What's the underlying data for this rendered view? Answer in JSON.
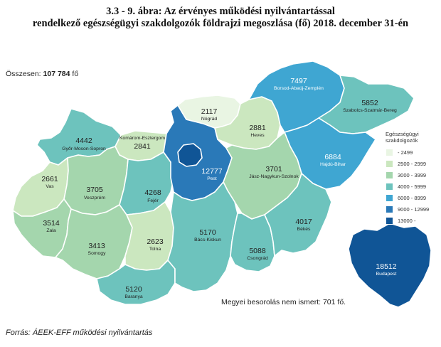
{
  "title_line1": "3.3 - 9. ábra: Az érvényes működési nyilvántartással",
  "title_line2": "rendelkező egészségügyi szakdolgozók földrajzi megoszlása (fő) 2018. december 31-én",
  "total_label": "Összesen:",
  "total_value": "107 784",
  "total_unit": "fő",
  "unknown_note": "Megyei besorolás nem ismert: 701 fő.",
  "source": "Forrás: ÁEEK-EFF működési nyilvántartás",
  "legend": {
    "title": "Egészségügyi szakdolgozók",
    "classes": [
      {
        "label": "- 2499",
        "color": "#e9f5e3"
      },
      {
        "label": "2500 - 2999",
        "color": "#cbe7bf"
      },
      {
        "label": "3000 - 3999",
        "color": "#a4d6ad"
      },
      {
        "label": "4000 - 5999",
        "color": "#6dc3bd"
      },
      {
        "label": "6000 - 8999",
        "color": "#3fa6d2"
      },
      {
        "label": "9000 - 12999",
        "color": "#2a79b8"
      },
      {
        "label": "13000 -",
        "color": "#105596"
      }
    ]
  },
  "counties": [
    {
      "id": "gyor-moson-sopron",
      "name": "Győr-Moson-Sopron",
      "value": "4442",
      "color": "#6dc3bd"
    },
    {
      "id": "komarom-esztergom",
      "name": "Komárom-Esztergom",
      "value": "2841",
      "color": "#cbe7bf"
    },
    {
      "id": "vas",
      "name": "Vas",
      "value": "2661",
      "color": "#cbe7bf"
    },
    {
      "id": "veszprem",
      "name": "Veszprém",
      "value": "3705",
      "color": "#a4d6ad"
    },
    {
      "id": "fejer",
      "name": "Fejér",
      "value": "4268",
      "color": "#6dc3bd"
    },
    {
      "id": "zala",
      "name": "Zala",
      "value": "3514",
      "color": "#a4d6ad"
    },
    {
      "id": "somogy",
      "name": "Somogy",
      "value": "3413",
      "color": "#a4d6ad"
    },
    {
      "id": "tolna",
      "name": "Tolna",
      "value": "2623",
      "color": "#cbe7bf"
    },
    {
      "id": "baranya",
      "name": "Baranya",
      "value": "5120",
      "color": "#6dc3bd"
    },
    {
      "id": "pest",
      "name": "Pest",
      "value": "12777",
      "color": "#2a79b8"
    },
    {
      "id": "nograd",
      "name": "Nógrád",
      "value": "2117",
      "color": "#e9f5e3"
    },
    {
      "id": "heves",
      "name": "Heves",
      "value": "2881",
      "color": "#cbe7bf"
    },
    {
      "id": "borsod",
      "name": "Borsod-Abaúj-Zemplén",
      "value": "7497",
      "color": "#3fa6d2"
    },
    {
      "id": "szabolcs",
      "name": "Szabolcs-Szatmár-Bereg",
      "value": "5852",
      "color": "#6dc3bd"
    },
    {
      "id": "hajdu-bihar",
      "name": "Hajdú-Bihar",
      "value": "6884",
      "color": "#3fa6d2"
    },
    {
      "id": "jasz",
      "name": "Jász-Nagykun-Szolnok",
      "value": "3701",
      "color": "#a4d6ad"
    },
    {
      "id": "bacs-kiskun",
      "name": "Bács-Kiskun",
      "value": "5170",
      "color": "#6dc3bd"
    },
    {
      "id": "csongrad",
      "name": "Csongrád",
      "value": "5088",
      "color": "#6dc3bd"
    },
    {
      "id": "bekes",
      "name": "Békés",
      "value": "4017",
      "color": "#6dc3bd"
    },
    {
      "id": "budapest",
      "name": "Budapest",
      "value": "18512",
      "color": "#105596"
    }
  ]
}
